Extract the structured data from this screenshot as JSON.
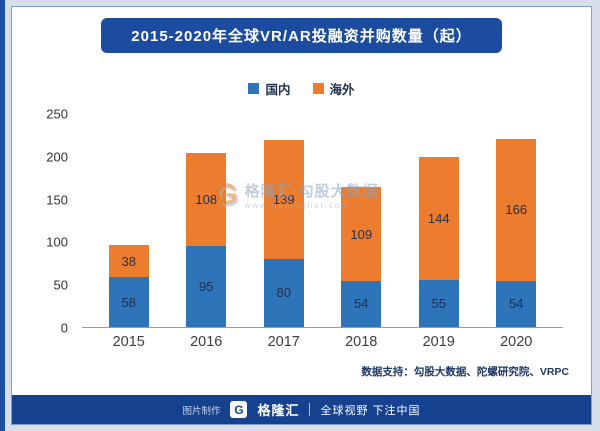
{
  "page": {
    "title": "2015-2020年全球VR/AR投融资并购数量（起）"
  },
  "chart_data": {
    "type": "bar",
    "stacked": true,
    "title": "2015-2020年全球VR/AR投融资并购数量（起）",
    "categories": [
      "2015",
      "2016",
      "2017",
      "2018",
      "2019",
      "2020"
    ],
    "series": [
      {
        "name": "国内",
        "color": "#2e74b8",
        "values": [
          58,
          95,
          80,
          54,
          55,
          54
        ]
      },
      {
        "name": "海外",
        "color": "#ec7d2f",
        "values": [
          38,
          108,
          139,
          109,
          144,
          166
        ]
      }
    ],
    "ylim": [
      0,
      250
    ],
    "yticks": [
      0,
      50,
      100,
      150,
      200,
      250
    ],
    "grid": false,
    "legend_position": "top",
    "xlabel": "",
    "ylabel": ""
  },
  "watermark": {
    "logo_letter": "G",
    "text": "格隆汇·勾股大数据",
    "subtext": "www.gelonghui.com"
  },
  "source_note": "数据支持：勾股大数据、陀螺研究院、VRPC",
  "footer": {
    "credit_label": "图片制作",
    "logo_letter": "G",
    "brand": "格隆汇",
    "slogan": "全球视野 下注中国"
  },
  "colors": {
    "banner_blue": "#1c4ca0",
    "footer_blue": "#16418f",
    "domestic_blue": "#2e74b8",
    "overseas_orange": "#ec7d2f",
    "page_background": "#d7dee9"
  }
}
